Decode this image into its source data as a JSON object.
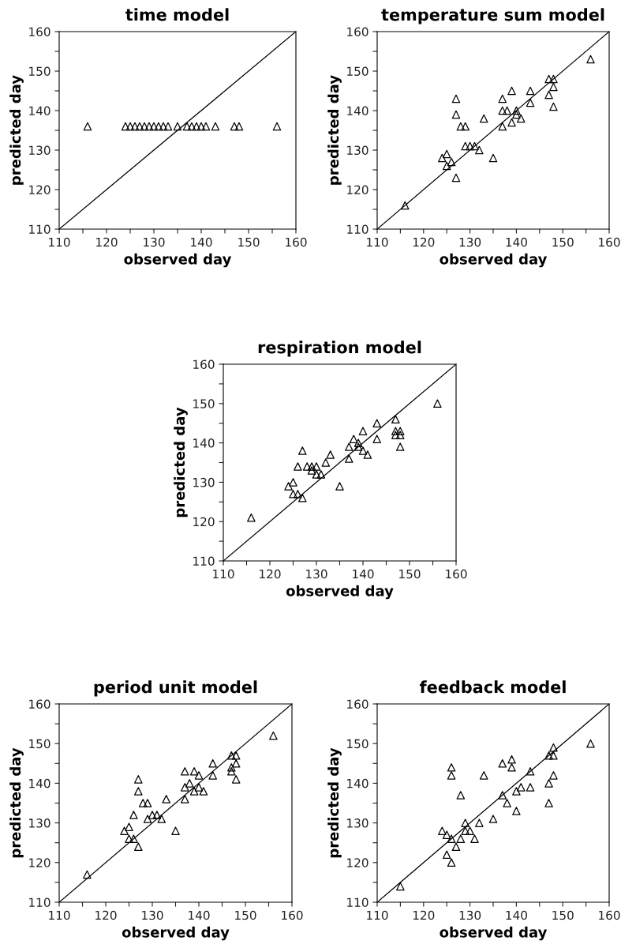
{
  "chart_data": [
    {
      "type": "scatter",
      "title": "time model",
      "xlabel": "observed day",
      "ylabel": "predicted day",
      "xlim": [
        110,
        160
      ],
      "ylim": [
        110,
        160
      ],
      "grid": false,
      "xticks": [
        110,
        {
          "value": 115,
          "label": null
        },
        120,
        {
          "value": 125,
          "label": null
        },
        130,
        {
          "value": 135,
          "label": null
        },
        140,
        {
          "value": 145,
          "label": null
        },
        150,
        {
          "value": 155,
          "label": null
        },
        160
      ],
      "yticks": [
        110,
        {
          "value": 115,
          "label": null
        },
        120,
        {
          "value": 125,
          "label": null
        },
        130,
        {
          "value": 135,
          "label": null
        },
        140,
        {
          "value": 145,
          "label": null
        },
        150,
        {
          "value": 155,
          "label": null
        },
        160
      ],
      "series": [
        {
          "marker": "triangle",
          "color": "#000000",
          "x": [
            116,
            124,
            125,
            126,
            127,
            128,
            129,
            130,
            131,
            132,
            133,
            135,
            137,
            138,
            139,
            140,
            141,
            143,
            147,
            148,
            156
          ],
          "values": [
            136,
            136,
            136,
            136,
            136,
            136,
            136,
            136,
            136,
            136,
            136,
            136,
            136,
            136,
            136,
            136,
            136,
            136,
            136,
            136,
            136
          ]
        },
        {
          "type": "line",
          "color": "#000000",
          "x": [
            110,
            160
          ],
          "values": [
            110,
            160
          ]
        }
      ]
    },
    {
      "type": "scatter",
      "title": "temperature sum model",
      "xlabel": "observed day",
      "ylabel": "predicted day",
      "xlim": [
        110,
        160
      ],
      "ylim": [
        110,
        160
      ],
      "grid": false,
      "xticks": [
        110,
        {
          "value": 115,
          "label": null
        },
        120,
        {
          "value": 125,
          "label": null
        },
        130,
        {
          "value": 135,
          "label": null
        },
        140,
        {
          "value": 145,
          "label": null
        },
        150,
        {
          "value": 155,
          "label": null
        },
        160
      ],
      "yticks": [
        110,
        {
          "value": 115,
          "label": null
        },
        120,
        {
          "value": 125,
          "label": null
        },
        130,
        {
          "value": 135,
          "label": null
        },
        140,
        {
          "value": 145,
          "label": null
        },
        150,
        {
          "value": 155,
          "label": null
        },
        160
      ],
      "series": [
        {
          "marker": "triangle",
          "color": "#000000",
          "x": [
            116,
            124,
            125,
            125,
            126,
            127,
            127,
            127,
            128,
            129,
            129,
            130,
            131,
            132,
            133,
            135,
            137,
            137,
            137,
            138,
            139,
            139,
            140,
            140,
            141,
            143,
            143,
            147,
            147,
            148,
            148,
            148,
            156
          ],
          "values": [
            116,
            128,
            129,
            126,
            127,
            123,
            143,
            139,
            136,
            136,
            131,
            131,
            131,
            130,
            138,
            128,
            136,
            143,
            140,
            140,
            145,
            137,
            140,
            139,
            138,
            145,
            142,
            148,
            144,
            148,
            146,
            141,
            153
          ]
        },
        {
          "type": "line",
          "color": "#000000",
          "x": [
            110,
            160
          ],
          "values": [
            110,
            160
          ]
        }
      ]
    },
    {
      "type": "scatter",
      "title": "respiration model",
      "xlabel": "observed day",
      "ylabel": "predicted day",
      "xlim": [
        110,
        160
      ],
      "ylim": [
        110,
        160
      ],
      "grid": false,
      "xticks": [
        110,
        {
          "value": 115,
          "label": null
        },
        120,
        {
          "value": 125,
          "label": null
        },
        130,
        {
          "value": 135,
          "label": null
        },
        140,
        {
          "value": 145,
          "label": null
        },
        150,
        {
          "value": 155,
          "label": null
        },
        160
      ],
      "yticks": [
        110,
        {
          "value": 115,
          "label": null
        },
        120,
        {
          "value": 125,
          "label": null
        },
        130,
        {
          "value": 135,
          "label": null
        },
        140,
        {
          "value": 145,
          "label": null
        },
        150,
        {
          "value": 155,
          "label": null
        },
        160
      ],
      "series": [
        {
          "marker": "triangle",
          "color": "#000000",
          "x": [
            116,
            124,
            125,
            125,
            126,
            126,
            127,
            127,
            128,
            129,
            129,
            130,
            130,
            131,
            132,
            133,
            135,
            137,
            137,
            138,
            139,
            139,
            140,
            140,
            141,
            143,
            143,
            147,
            147,
            147,
            148,
            148,
            148,
            156
          ],
          "values": [
            121,
            129,
            130,
            127,
            127,
            134,
            138,
            126,
            134,
            134,
            133,
            132,
            134,
            132,
            135,
            137,
            129,
            136,
            139,
            141,
            140,
            139,
            143,
            138,
            137,
            145,
            141,
            146,
            143,
            142,
            143,
            142,
            139,
            150
          ]
        },
        {
          "type": "line",
          "color": "#000000",
          "x": [
            110,
            160
          ],
          "values": [
            110,
            160
          ]
        }
      ]
    },
    {
      "type": "scatter",
      "title": "period unit model",
      "xlabel": "observed day",
      "ylabel": "predicted day",
      "xlim": [
        110,
        160
      ],
      "ylim": [
        110,
        160
      ],
      "grid": false,
      "xticks": [
        110,
        {
          "value": 115,
          "label": null
        },
        120,
        {
          "value": 125,
          "label": null
        },
        130,
        {
          "value": 135,
          "label": null
        },
        140,
        {
          "value": 145,
          "label": null
        },
        150,
        {
          "value": 155,
          "label": null
        },
        160
      ],
      "yticks": [
        110,
        {
          "value": 115,
          "label": null
        },
        120,
        {
          "value": 125,
          "label": null
        },
        130,
        {
          "value": 135,
          "label": null
        },
        140,
        {
          "value": 145,
          "label": null
        },
        150,
        {
          "value": 155,
          "label": null
        },
        160
      ],
      "series": [
        {
          "marker": "triangle",
          "color": "#000000",
          "x": [
            116,
            124,
            125,
            125,
            126,
            126,
            127,
            127,
            127,
            128,
            129,
            129,
            130,
            131,
            132,
            133,
            135,
            137,
            137,
            137,
            138,
            139,
            139,
            140,
            140,
            141,
            143,
            143,
            147,
            147,
            147,
            148,
            148,
            148,
            156
          ],
          "values": [
            117,
            128,
            129,
            126,
            126,
            132,
            141,
            138,
            124,
            135,
            135,
            131,
            132,
            132,
            131,
            136,
            128,
            143,
            139,
            136,
            140,
            143,
            138,
            142,
            139,
            138,
            145,
            142,
            147,
            144,
            143,
            147,
            145,
            141,
            152
          ]
        },
        {
          "type": "line",
          "color": "#000000",
          "x": [
            110,
            160
          ],
          "values": [
            110,
            160
          ]
        }
      ]
    },
    {
      "type": "scatter",
      "title": "feedback model",
      "xlabel": "observed day",
      "ylabel": "predicted day",
      "xlim": [
        110,
        160
      ],
      "ylim": [
        110,
        160
      ],
      "grid": false,
      "xticks": [
        110,
        {
          "value": 115,
          "label": null
        },
        120,
        {
          "value": 125,
          "label": null
        },
        130,
        {
          "value": 135,
          "label": null
        },
        140,
        {
          "value": 145,
          "label": null
        },
        150,
        {
          "value": 155,
          "label": null
        },
        160
      ],
      "yticks": [
        110,
        {
          "value": 115,
          "label": null
        },
        120,
        {
          "value": 125,
          "label": null
        },
        130,
        {
          "value": 135,
          "label": null
        },
        140,
        {
          "value": 145,
          "label": null
        },
        150,
        {
          "value": 155,
          "label": null
        },
        160
      ],
      "series": [
        {
          "marker": "triangle",
          "color": "#000000",
          "x": [
            115,
            124,
            125,
            125,
            126,
            126,
            126,
            126,
            127,
            128,
            128,
            129,
            129,
            130,
            131,
            132,
            133,
            135,
            137,
            137,
            138,
            139,
            139,
            140,
            140,
            141,
            143,
            143,
            147,
            147,
            147,
            148,
            148,
            148,
            156
          ],
          "values": [
            114,
            128,
            127,
            122,
            126,
            120,
            144,
            142,
            124,
            126,
            137,
            128,
            130,
            128,
            126,
            130,
            142,
            131,
            137,
            145,
            135,
            146,
            144,
            133,
            138,
            139,
            143,
            139,
            147,
            140,
            135,
            149,
            147,
            142,
            150
          ]
        },
        {
          "type": "line",
          "color": "#000000",
          "x": [
            110,
            160
          ],
          "values": [
            110,
            160
          ]
        }
      ]
    }
  ]
}
